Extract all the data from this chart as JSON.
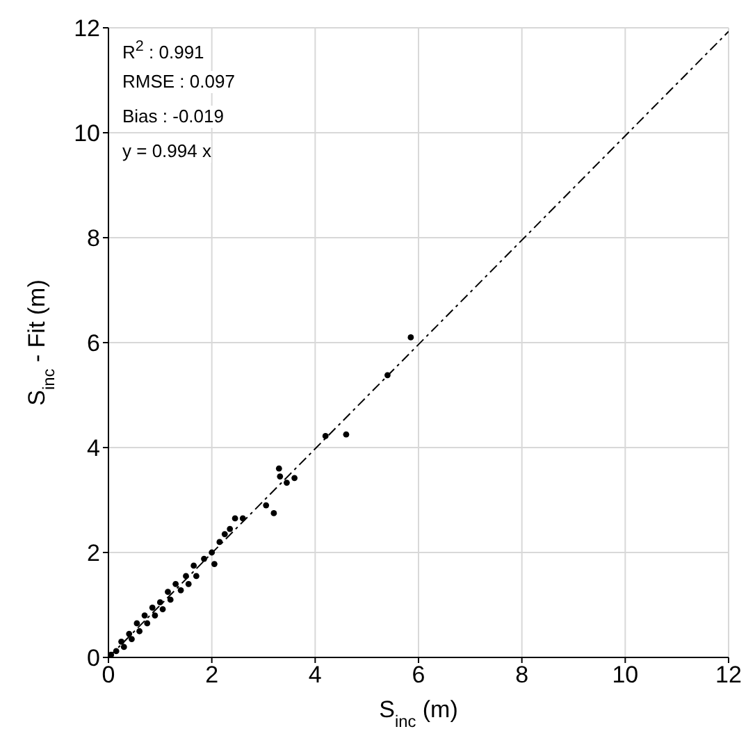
{
  "chart_data": {
    "type": "scatter",
    "xlabel": "S$_{inc}$ (m)",
    "ylabel": "S$_{inc}$ - Fit (m)",
    "xlim": [
      0,
      12
    ],
    "ylim": [
      0,
      12
    ],
    "xticks": [
      0,
      2,
      4,
      6,
      8,
      10,
      12
    ],
    "yticks": [
      0,
      2,
      4,
      6,
      8,
      10,
      12
    ],
    "grid": true,
    "annotations": [
      "R$^{2}$ : 0.991",
      "RMSE : 0.097",
      "Bias : -0.019",
      "y = 0.994 x"
    ],
    "series": [
      {
        "color": "#000000",
        "marker": "circle",
        "x": [
          0.05,
          0.15,
          0.25,
          0.3,
          0.4,
          0.45,
          0.55,
          0.6,
          0.7,
          0.75,
          0.85,
          0.9,
          1.0,
          1.05,
          1.15,
          1.2,
          1.3,
          1.4,
          1.5,
          1.55,
          1.65,
          1.7,
          1.85,
          2.0,
          2.05,
          2.15,
          2.25,
          2.35,
          2.45,
          2.6,
          3.05,
          3.2,
          3.3,
          3.32,
          3.45,
          3.6,
          4.2,
          4.6,
          5.4,
          5.85
        ],
        "values": [
          0.05,
          0.12,
          0.3,
          0.2,
          0.45,
          0.35,
          0.65,
          0.5,
          0.8,
          0.65,
          0.95,
          0.8,
          1.05,
          0.92,
          1.25,
          1.1,
          1.4,
          1.28,
          1.55,
          1.4,
          1.75,
          1.55,
          1.88,
          2.0,
          1.78,
          2.2,
          2.35,
          2.45,
          2.65,
          2.65,
          2.9,
          2.75,
          3.6,
          3.45,
          3.33,
          3.42,
          4.22,
          4.25,
          5.38,
          6.1
        ]
      },
      {
        "type": "line",
        "color": "#000000",
        "line_style": "dashed",
        "marker": "none",
        "x": [
          0,
          12
        ],
        "values": [
          0,
          11.93
        ]
      }
    ]
  }
}
